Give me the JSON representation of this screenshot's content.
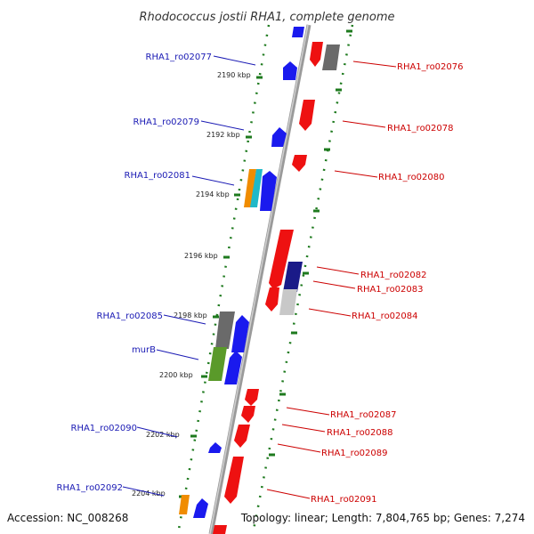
{
  "title": "Rhodococcus jostii RHA1, complete genome",
  "footer": {
    "accession": "Accession: NC_008268",
    "topology": "Topology: linear; Length: 7,804,765 bp; Genes: 7,274"
  },
  "colors": {
    "backbone": "#8c8c8c",
    "tick": "#1e7a1e",
    "left_label": "#1a1ab4",
    "right_label": "#cc0000"
  },
  "scale_labels": [
    "2190 kbp",
    "2192 kbp",
    "2194 kbp",
    "2196 kbp",
    "2198 kbp",
    "2200 kbp",
    "2202 kbp",
    "2204 kbp"
  ],
  "left_labels": [
    "RHA1_ro02077",
    "RHA1_ro02079",
    "RHA1_ro02081",
    "RHA1_ro02085",
    "murB",
    "RHA1_ro02090",
    "RHA1_ro02092"
  ],
  "right_labels": [
    "RHA1_ro02076",
    "RHA1_ro02078",
    "RHA1_ro02080",
    "RHA1_ro02082",
    "RHA1_ro02083",
    "RHA1_ro02084",
    "RHA1_ro02087",
    "RHA1_ro02088",
    "RHA1_ro02089",
    "RHA1_ro02091"
  ]
}
